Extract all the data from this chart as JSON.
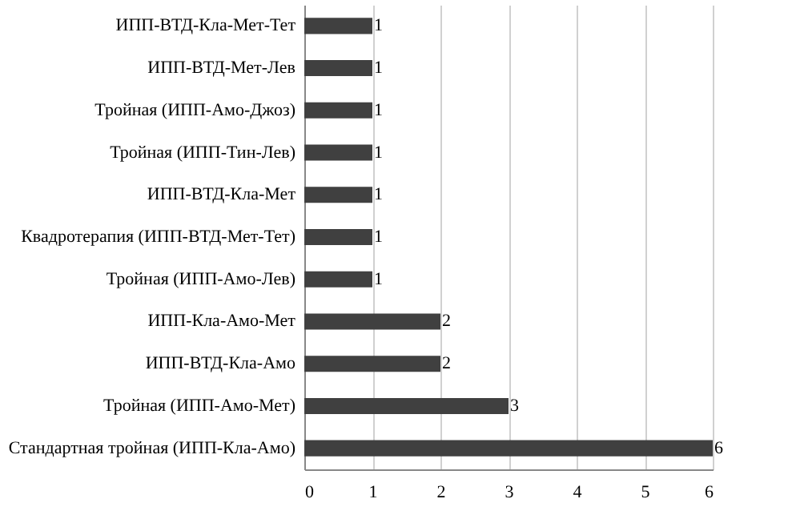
{
  "chart_data": {
    "type": "bar",
    "orientation": "horizontal",
    "categories": [
      "ИПП-ВТД-Кла-Мет-Тет",
      "ИПП-ВТД-Мет-Лев",
      "Тройная (ИПП-Амо-Джоз)",
      "Тройная (ИПП-Тин-Лев)",
      "ИПП-ВТД-Кла-Мет",
      "Квадротерапия (ИПП-ВТД-Мет-Тет)",
      "Тройная (ИПП-Амо-Лев)",
      "ИПП-Кла-Амо-Мет",
      "ИПП-ВТД-Кла-Амо",
      "Тройная (ИПП-Амо-Мет)",
      "Стандартная тройная (ИПП-Кла-Амо)"
    ],
    "values": [
      1,
      1,
      1,
      1,
      1,
      1,
      1,
      2,
      2,
      3,
      6
    ],
    "color": "#404040",
    "xlim": [
      0,
      6
    ],
    "xticks": [
      0,
      1,
      2,
      3,
      4,
      5,
      6
    ],
    "grid": "x",
    "data_labels": true
  }
}
